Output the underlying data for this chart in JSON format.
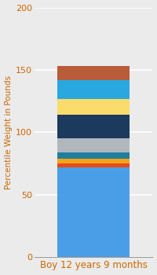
{
  "category": "Boy 12 years 9 months",
  "segments": [
    {
      "value": 72,
      "color": "#4A9EE8"
    },
    {
      "value": 3,
      "color": "#E84A1A"
    },
    {
      "value": 4,
      "color": "#F5A31A"
    },
    {
      "value": 5,
      "color": "#1F7EA0"
    },
    {
      "value": 11,
      "color": "#B0B8BE"
    },
    {
      "value": 19,
      "color": "#1C3A5E"
    },
    {
      "value": 13,
      "color": "#F9DC6B"
    },
    {
      "value": 15,
      "color": "#29A8E0"
    },
    {
      "value": 11,
      "color": "#B85C3A"
    }
  ],
  "ylim": [
    0,
    200
  ],
  "yticks": [
    0,
    50,
    100,
    150,
    200
  ],
  "ylabel": "Percentile Weight in Pounds",
  "bg_color": "#EBEBEB",
  "plot_bg": "#FFFFFF",
  "grid_color": "#FFFFFF",
  "tick_color": "#CC6600",
  "label_color": "#CC6600",
  "ylabel_fontsize": 7.5,
  "tick_fontsize": 8,
  "xlabel_fontsize": 8.5,
  "bar_width": 0.55
}
